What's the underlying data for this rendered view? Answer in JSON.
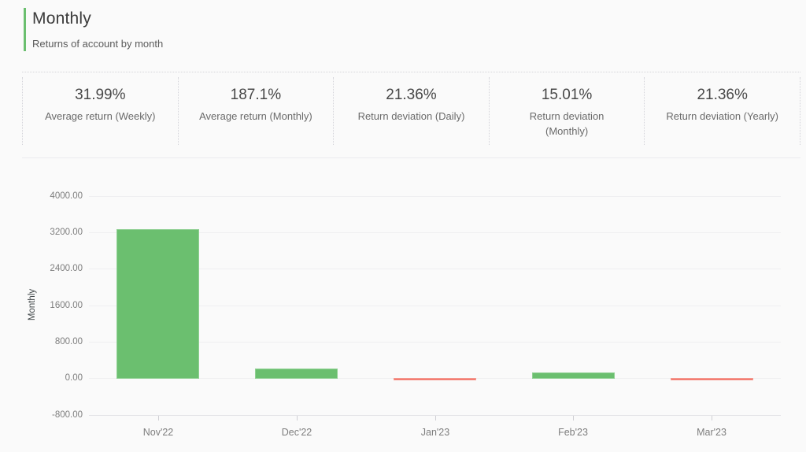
{
  "header": {
    "title": "Monthly",
    "subtitle": "Returns of account by month"
  },
  "stats": {
    "items": [
      {
        "value": "31.99%",
        "label": "Average return (Weekly)"
      },
      {
        "value": "187.1%",
        "label": "Average return (Monthly)"
      },
      {
        "value": "21.36%",
        "label": "Return deviation (Daily)"
      },
      {
        "value": "15.01%",
        "label": "Return deviation\n(Monthly)"
      },
      {
        "value": "21.36%",
        "label": "Return deviation (Yearly)"
      }
    ]
  },
  "chart_data": {
    "type": "bar",
    "title": "",
    "xlabel": "",
    "ylabel": "Monthly",
    "categories": [
      "Nov'22",
      "Dec'22",
      "Jan'23",
      "Feb'23",
      "Mar'23"
    ],
    "values": [
      3270,
      225,
      -20,
      130,
      -25
    ],
    "ylim": [
      -800,
      4000
    ],
    "yticks": [
      4000,
      3200,
      2400,
      1600,
      800,
      0,
      -800
    ],
    "ytick_labels": [
      "4000.00",
      "3200.00",
      "2400.00",
      "1600.00",
      "800.00",
      "0.00",
      "-800.00"
    ],
    "grid": true,
    "legend": "none",
    "positive_color": "#6bbf6f",
    "positive_border": "#90d093",
    "negative_color": "#f1685e",
    "negative_border": "#f59c92"
  },
  "colors": {
    "accent_green": "#6bbf6f",
    "negative_red": "#f1685e"
  }
}
